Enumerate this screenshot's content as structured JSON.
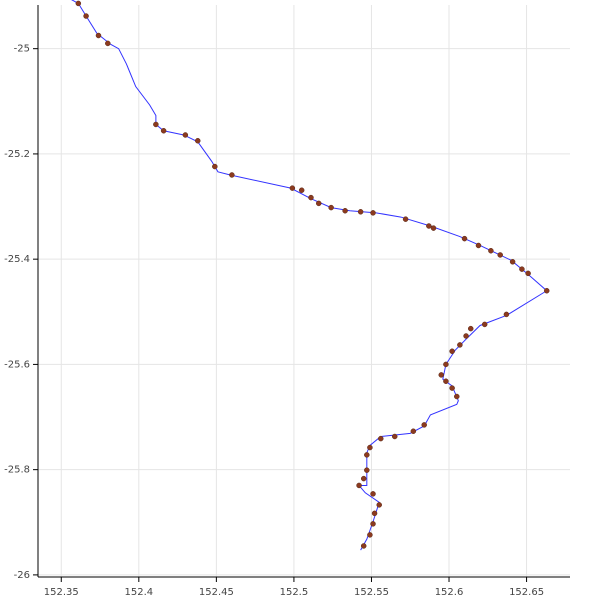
{
  "chart_data": {
    "type": "line",
    "xlim": [
      152.335,
      152.678
    ],
    "ylim": [
      -26.004,
      -24.917
    ],
    "xticks": [
      152.35,
      152.4,
      152.45,
      152.5,
      152.55,
      152.6,
      152.65
    ],
    "yticks": [
      -25,
      -25.2,
      -25.4,
      -25.6,
      -25.8,
      -26
    ],
    "grid": true,
    "series": [
      {
        "type": "line",
        "color": "#3333ff",
        "x": [
          152.351,
          152.353,
          152.361,
          152.366,
          152.373,
          152.382,
          152.387,
          152.392,
          152.398,
          152.407,
          152.411,
          152.411,
          152.416,
          152.429,
          152.438,
          152.447,
          152.451,
          152.459,
          152.498,
          152.511,
          152.524,
          152.536,
          152.553,
          152.569,
          152.588,
          152.607,
          152.62,
          152.64,
          152.651,
          152.663,
          152.637,
          152.62,
          152.611,
          152.604,
          152.598,
          152.596,
          152.602,
          152.606,
          152.605,
          152.588,
          152.584,
          152.575,
          152.556,
          152.549,
          152.547,
          152.547,
          152.542,
          152.546,
          152.555,
          152.551,
          152.547,
          152.543
        ],
        "y": [
          -24.891,
          -24.901,
          -24.914,
          -24.938,
          -24.971,
          -24.992,
          -25.0,
          -25.029,
          -25.072,
          -25.107,
          -25.127,
          -25.144,
          -25.156,
          -25.164,
          -25.177,
          -25.214,
          -25.234,
          -25.24,
          -25.265,
          -25.285,
          -25.302,
          -25.308,
          -25.312,
          -25.32,
          -25.337,
          -25.357,
          -25.374,
          -25.402,
          -25.429,
          -25.46,
          -25.507,
          -25.526,
          -25.552,
          -25.573,
          -25.6,
          -25.628,
          -25.641,
          -25.669,
          -25.676,
          -25.696,
          -25.717,
          -25.731,
          -25.737,
          -25.754,
          -25.768,
          -25.83,
          -25.83,
          -25.844,
          -25.862,
          -25.899,
          -25.932,
          -25.953
        ]
      },
      {
        "type": "scatter",
        "color": "#8b3a1f",
        "x": [
          152.361,
          152.366,
          152.374,
          152.38,
          152.411,
          152.416,
          152.43,
          152.438,
          152.449,
          152.46,
          152.499,
          152.505,
          152.511,
          152.516,
          152.524,
          152.533,
          152.543,
          152.551,
          152.572,
          152.587,
          152.59,
          152.61,
          152.619,
          152.627,
          152.633,
          152.641,
          152.647,
          152.651,
          152.663,
          152.637,
          152.623,
          152.614,
          152.611,
          152.607,
          152.602,
          152.598,
          152.595,
          152.598,
          152.602,
          152.605,
          152.584,
          152.577,
          152.565,
          152.556,
          152.549,
          152.547,
          152.547,
          152.545,
          152.542,
          152.551,
          152.555,
          152.552,
          152.551,
          152.549,
          152.545
        ],
        "y": [
          -24.914,
          -24.938,
          -24.975,
          -24.99,
          -25.144,
          -25.156,
          -25.164,
          -25.175,
          -25.224,
          -25.24,
          -25.265,
          -25.269,
          -25.283,
          -25.294,
          -25.302,
          -25.308,
          -25.31,
          -25.312,
          -25.324,
          -25.337,
          -25.341,
          -25.361,
          -25.374,
          -25.384,
          -25.392,
          -25.405,
          -25.419,
          -25.427,
          -25.46,
          -25.505,
          -25.524,
          -25.532,
          -25.546,
          -25.563,
          -25.575,
          -25.6,
          -25.62,
          -25.632,
          -25.645,
          -25.661,
          -25.715,
          -25.727,
          -25.737,
          -25.741,
          -25.758,
          -25.772,
          -25.801,
          -25.817,
          -25.83,
          -25.846,
          -25.867,
          -25.883,
          -25.903,
          -25.924,
          -25.945
        ]
      }
    ]
  }
}
